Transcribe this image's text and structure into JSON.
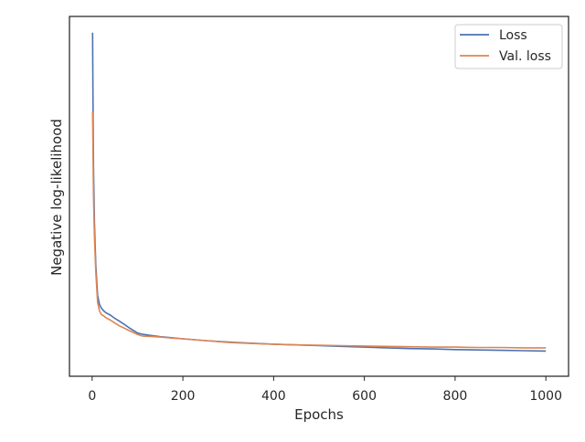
{
  "chart_data": {
    "type": "line",
    "title": "",
    "xlabel": "Epochs",
    "ylabel": "Negative log-likelihood",
    "xlim": [
      -50,
      1050
    ],
    "ylim": [
      0,
      1
    ],
    "y_tick_labels_shown": false,
    "x_ticks": [
      0,
      200,
      400,
      600,
      800,
      1000
    ],
    "x_tick_labels": [
      "0",
      "200",
      "400",
      "600",
      "800",
      "1000"
    ],
    "grid": false,
    "legend_position": "top-right",
    "series": [
      {
        "name": "Loss",
        "color": "#4c72b0",
        "points": [
          [
            1,
            0.955
          ],
          [
            2,
            0.74
          ],
          [
            3,
            0.58
          ],
          [
            5,
            0.43
          ],
          [
            8,
            0.31
          ],
          [
            12,
            0.225
          ],
          [
            16,
            0.2
          ],
          [
            20,
            0.19
          ],
          [
            25,
            0.182
          ],
          [
            30,
            0.177
          ],
          [
            40,
            0.17
          ],
          [
            50,
            0.161
          ],
          [
            60,
            0.153
          ],
          [
            70,
            0.145
          ],
          [
            80,
            0.136
          ],
          [
            90,
            0.128
          ],
          [
            100,
            0.12
          ],
          [
            110,
            0.117
          ],
          [
            125,
            0.114
          ],
          [
            150,
            0.11
          ],
          [
            175,
            0.107
          ],
          [
            200,
            0.104
          ],
          [
            250,
            0.099
          ],
          [
            300,
            0.095
          ],
          [
            350,
            0.092
          ],
          [
            400,
            0.089
          ],
          [
            450,
            0.087
          ],
          [
            500,
            0.085
          ],
          [
            550,
            0.083
          ],
          [
            600,
            0.081
          ],
          [
            650,
            0.079
          ],
          [
            700,
            0.077
          ],
          [
            750,
            0.076
          ],
          [
            800,
            0.074
          ],
          [
            850,
            0.073
          ],
          [
            900,
            0.072
          ],
          [
            950,
            0.071
          ],
          [
            1000,
            0.07
          ]
        ]
      },
      {
        "name": "Val. loss",
        "color": "#dd8452",
        "points": [
          [
            1,
            0.735
          ],
          [
            2,
            0.62
          ],
          [
            3,
            0.5
          ],
          [
            5,
            0.39
          ],
          [
            8,
            0.29
          ],
          [
            12,
            0.205
          ],
          [
            16,
            0.182
          ],
          [
            20,
            0.172
          ],
          [
            25,
            0.168
          ],
          [
            30,
            0.163
          ],
          [
            40,
            0.156
          ],
          [
            50,
            0.148
          ],
          [
            60,
            0.14
          ],
          [
            70,
            0.134
          ],
          [
            80,
            0.128
          ],
          [
            90,
            0.122
          ],
          [
            100,
            0.116
          ],
          [
            110,
            0.112
          ],
          [
            125,
            0.111
          ],
          [
            150,
            0.109
          ],
          [
            175,
            0.106
          ],
          [
            200,
            0.104
          ],
          [
            250,
            0.099
          ],
          [
            300,
            0.094
          ],
          [
            350,
            0.091
          ],
          [
            400,
            0.089
          ],
          [
            450,
            0.087
          ],
          [
            500,
            0.086
          ],
          [
            550,
            0.085
          ],
          [
            600,
            0.084
          ],
          [
            650,
            0.083
          ],
          [
            700,
            0.082
          ],
          [
            750,
            0.081
          ],
          [
            800,
            0.081
          ],
          [
            850,
            0.08
          ],
          [
            900,
            0.08
          ],
          [
            950,
            0.079
          ],
          [
            1000,
            0.079
          ]
        ]
      }
    ]
  }
}
